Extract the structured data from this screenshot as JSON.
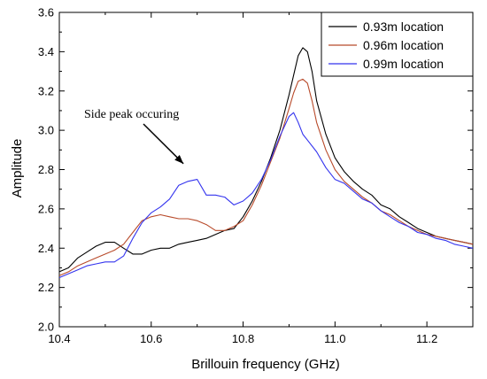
{
  "chart_data": {
    "type": "line",
    "xlabel": "Brillouin frequency (GHz)",
    "ylabel": "Amplitude",
    "xlim": [
      10.4,
      11.3
    ],
    "ylim": [
      2.0,
      3.6
    ],
    "xticks": [
      "10.4",
      "10.6",
      "10.8",
      "11.0",
      "11.2"
    ],
    "yticks": [
      "2.0",
      "2.2",
      "2.4",
      "2.6",
      "2.8",
      "3.0",
      "3.2",
      "3.4",
      "3.6"
    ],
    "grid": false,
    "legend_position": "top-right",
    "annotation": {
      "text": "Side peak occuring",
      "arrow_to": [
        10.67,
        2.83
      ]
    },
    "series": [
      {
        "name": "0.93m location",
        "color": "#000000",
        "points": [
          [
            10.4,
            2.28
          ],
          [
            10.42,
            2.3
          ],
          [
            10.44,
            2.35
          ],
          [
            10.46,
            2.38
          ],
          [
            10.48,
            2.41
          ],
          [
            10.5,
            2.43
          ],
          [
            10.52,
            2.43
          ],
          [
            10.54,
            2.4
          ],
          [
            10.56,
            2.37
          ],
          [
            10.58,
            2.37
          ],
          [
            10.6,
            2.39
          ],
          [
            10.62,
            2.4
          ],
          [
            10.64,
            2.4
          ],
          [
            10.66,
            2.42
          ],
          [
            10.68,
            2.43
          ],
          [
            10.7,
            2.44
          ],
          [
            10.72,
            2.45
          ],
          [
            10.74,
            2.47
          ],
          [
            10.76,
            2.49
          ],
          [
            10.78,
            2.5
          ],
          [
            10.8,
            2.56
          ],
          [
            10.82,
            2.64
          ],
          [
            10.84,
            2.74
          ],
          [
            10.86,
            2.86
          ],
          [
            10.88,
            3.0
          ],
          [
            10.9,
            3.18
          ],
          [
            10.91,
            3.28
          ],
          [
            10.92,
            3.38
          ],
          [
            10.93,
            3.42
          ],
          [
            10.94,
            3.4
          ],
          [
            10.95,
            3.3
          ],
          [
            10.96,
            3.15
          ],
          [
            10.98,
            2.98
          ],
          [
            11.0,
            2.86
          ],
          [
            11.02,
            2.79
          ],
          [
            11.04,
            2.74
          ],
          [
            11.06,
            2.7
          ],
          [
            11.08,
            2.67
          ],
          [
            11.1,
            2.62
          ],
          [
            11.12,
            2.6
          ],
          [
            11.14,
            2.56
          ],
          [
            11.16,
            2.53
          ],
          [
            11.18,
            2.5
          ],
          [
            11.2,
            2.48
          ],
          [
            11.22,
            2.46
          ],
          [
            11.24,
            2.45
          ],
          [
            11.26,
            2.44
          ],
          [
            11.28,
            2.43
          ],
          [
            11.3,
            2.42
          ]
        ]
      },
      {
        "name": "0.96m location",
        "color": "#b84a2a",
        "points": [
          [
            10.4,
            2.26
          ],
          [
            10.42,
            2.28
          ],
          [
            10.44,
            2.31
          ],
          [
            10.46,
            2.33
          ],
          [
            10.48,
            2.35
          ],
          [
            10.5,
            2.37
          ],
          [
            10.52,
            2.39
          ],
          [
            10.54,
            2.42
          ],
          [
            10.56,
            2.48
          ],
          [
            10.58,
            2.54
          ],
          [
            10.6,
            2.56
          ],
          [
            10.62,
            2.57
          ],
          [
            10.64,
            2.56
          ],
          [
            10.66,
            2.55
          ],
          [
            10.68,
            2.55
          ],
          [
            10.7,
            2.54
          ],
          [
            10.72,
            2.52
          ],
          [
            10.74,
            2.49
          ],
          [
            10.76,
            2.49
          ],
          [
            10.78,
            2.51
          ],
          [
            10.8,
            2.54
          ],
          [
            10.82,
            2.62
          ],
          [
            10.84,
            2.72
          ],
          [
            10.86,
            2.84
          ],
          [
            10.88,
            2.96
          ],
          [
            10.9,
            3.11
          ],
          [
            10.91,
            3.19
          ],
          [
            10.92,
            3.25
          ],
          [
            10.93,
            3.26
          ],
          [
            10.94,
            3.24
          ],
          [
            10.95,
            3.15
          ],
          [
            10.96,
            3.04
          ],
          [
            10.98,
            2.9
          ],
          [
            11.0,
            2.8
          ],
          [
            11.02,
            2.74
          ],
          [
            11.04,
            2.7
          ],
          [
            11.06,
            2.66
          ],
          [
            11.08,
            2.63
          ],
          [
            11.1,
            2.59
          ],
          [
            11.12,
            2.57
          ],
          [
            11.14,
            2.54
          ],
          [
            11.16,
            2.51
          ],
          [
            11.18,
            2.49
          ],
          [
            11.2,
            2.47
          ],
          [
            11.22,
            2.46
          ],
          [
            11.24,
            2.45
          ],
          [
            11.26,
            2.44
          ],
          [
            11.28,
            2.43
          ],
          [
            11.3,
            2.42
          ]
        ]
      },
      {
        "name": "0.99m location",
        "color": "#3333ee",
        "points": [
          [
            10.4,
            2.25
          ],
          [
            10.42,
            2.27
          ],
          [
            10.44,
            2.29
          ],
          [
            10.46,
            2.31
          ],
          [
            10.48,
            2.32
          ],
          [
            10.5,
            2.33
          ],
          [
            10.52,
            2.33
          ],
          [
            10.54,
            2.36
          ],
          [
            10.56,
            2.45
          ],
          [
            10.58,
            2.53
          ],
          [
            10.6,
            2.58
          ],
          [
            10.62,
            2.61
          ],
          [
            10.64,
            2.65
          ],
          [
            10.66,
            2.72
          ],
          [
            10.68,
            2.74
          ],
          [
            10.7,
            2.75
          ],
          [
            10.72,
            2.67
          ],
          [
            10.74,
            2.67
          ],
          [
            10.76,
            2.66
          ],
          [
            10.78,
            2.62
          ],
          [
            10.8,
            2.64
          ],
          [
            10.82,
            2.68
          ],
          [
            10.84,
            2.75
          ],
          [
            10.86,
            2.85
          ],
          [
            10.88,
            2.97
          ],
          [
            10.9,
            3.07
          ],
          [
            10.91,
            3.09
          ],
          [
            10.92,
            3.04
          ],
          [
            10.93,
            2.98
          ],
          [
            10.94,
            2.95
          ],
          [
            10.96,
            2.89
          ],
          [
            10.98,
            2.81
          ],
          [
            11.0,
            2.75
          ],
          [
            11.02,
            2.73
          ],
          [
            11.04,
            2.69
          ],
          [
            11.06,
            2.65
          ],
          [
            11.08,
            2.63
          ],
          [
            11.1,
            2.59
          ],
          [
            11.12,
            2.56
          ],
          [
            11.14,
            2.53
          ],
          [
            11.16,
            2.51
          ],
          [
            11.18,
            2.48
          ],
          [
            11.2,
            2.47
          ],
          [
            11.22,
            2.45
          ],
          [
            11.24,
            2.44
          ],
          [
            11.26,
            2.42
          ],
          [
            11.28,
            2.41
          ],
          [
            11.3,
            2.4
          ]
        ]
      }
    ]
  }
}
